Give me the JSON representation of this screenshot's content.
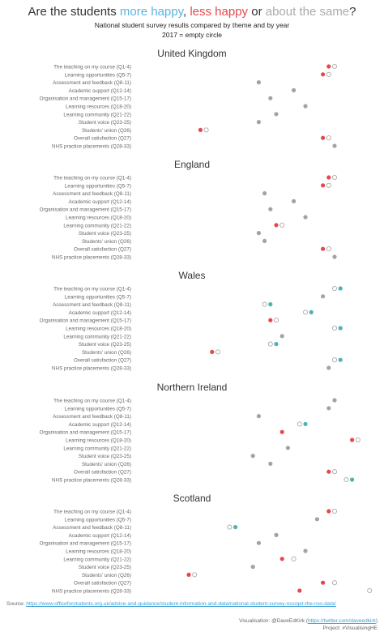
{
  "title": {
    "prefix": "Are the students ",
    "more_happy": "more happy",
    "sep1": ", ",
    "less_happy": "less happy",
    "sep2": " or ",
    "same": "about the same",
    "suffix": "?"
  },
  "subtitle": "National student survey results compared by theme and by year",
  "legend_note": "2017 = empty  circle",
  "colors": {
    "more": "#4fb3b0",
    "less": "#e8474a",
    "same": "#a3a3a3",
    "hollow": "#aaaaaa"
  },
  "chart_data": {
    "type": "scatter",
    "categories": [
      "The teaching on my course (Q1-4)",
      "Learning opportunities (Q5-7)",
      "Assessment and feedback (Q8-11)",
      "Academic support (Q12-14)",
      "Organisation and management (Q15-17)",
      "Learning resources (Q18-20)",
      "Learning community (Q21-22)",
      "Student voice (Q23-25)",
      "Students' union (Q26)",
      "Overall satisfaction (Q27)",
      "NHS practice placements (Q28-33)"
    ],
    "panels": [
      {
        "region": "United Kingdom",
        "v2018": [
          84,
          83,
          72,
          78,
          74,
          80,
          75,
          72,
          62,
          83,
          85
        ],
        "v2017": [
          85,
          84,
          null,
          null,
          null,
          null,
          null,
          null,
          63,
          84,
          null
        ],
        "status": [
          "less",
          "less",
          "same",
          "same",
          "same",
          "same",
          "same",
          "same",
          "less",
          "less",
          "same"
        ]
      },
      {
        "region": "England",
        "v2018": [
          84,
          83,
          73,
          78,
          74,
          80,
          75,
          72,
          73,
          83,
          85
        ],
        "v2017": [
          85,
          84,
          null,
          null,
          null,
          null,
          76,
          null,
          null,
          84,
          null
        ],
        "status": [
          "less",
          "less",
          "same",
          "same",
          "same",
          "same",
          "less",
          "same",
          "same",
          "less",
          "same"
        ]
      },
      {
        "region": "Wales",
        "v2018": [
          86,
          83,
          74,
          81,
          74,
          86,
          76,
          75,
          64,
          86,
          84
        ],
        "v2017": [
          85,
          null,
          73,
          80,
          75,
          85,
          null,
          74,
          65,
          85,
          null
        ],
        "status": [
          "more",
          "same",
          "more",
          "more",
          "less",
          "more",
          "same",
          "more",
          "less",
          "more",
          "same"
        ]
      },
      {
        "region": "Northern Ireland",
        "v2018": [
          85,
          84,
          72,
          80,
          76,
          88,
          77,
          71,
          74,
          84,
          88
        ],
        "v2017": [
          null,
          null,
          null,
          79,
          null,
          89,
          null,
          null,
          null,
          85,
          87
        ],
        "status": [
          "same",
          "same",
          "same",
          "more",
          "less",
          "less",
          "same",
          "same",
          "same",
          "less",
          "more"
        ]
      },
      {
        "region": "Scotland",
        "v2018": [
          84,
          82,
          68,
          75,
          72,
          80,
          76,
          71,
          60,
          83,
          79
        ],
        "v2017": [
          85,
          null,
          67,
          null,
          null,
          null,
          78,
          null,
          61,
          85,
          91
        ],
        "status": [
          "less",
          "same",
          "more",
          "same",
          "same",
          "same",
          "less",
          "same",
          "less",
          "less",
          "less"
        ]
      }
    ]
  },
  "footer": {
    "source_label": "Source: ",
    "source_url": "https://www.officeforstudents.org.uk/advice-and-guidance/student-information-and-data/national-student-survey-nss/get-the-nss-data/",
    "visualisation_label": "Visualisation: @DaveEdKirk (",
    "visualisation_url": "https://twitter.com/daveedkirk",
    "visualisation_end": ")",
    "project": "Project: #VisualisingHE"
  }
}
